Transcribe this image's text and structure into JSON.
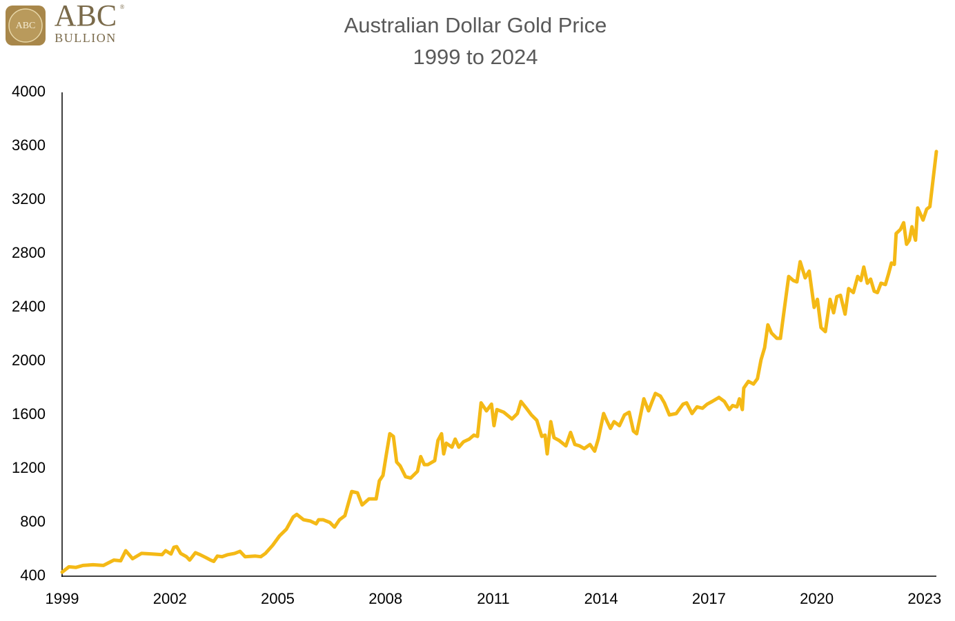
{
  "logo": {
    "mark": "ABC",
    "name": "ABC",
    "registered": "®",
    "tagline": "BULLION"
  },
  "chart_data": {
    "type": "line",
    "title": "Australian Dollar Gold Price",
    "subtitle": "1999 to 2024",
    "color": "#f4b916",
    "grid": false,
    "x": [
      1999.0,
      1999.19,
      1999.38,
      1999.58,
      1999.86,
      2000.15,
      2000.44,
      2000.63,
      2000.77,
      2000.96,
      2001.21,
      2001.5,
      2001.78,
      2001.88,
      2002.03,
      2002.11,
      2002.19,
      2002.3,
      2002.46,
      2002.55,
      2002.71,
      2002.84,
      2002.99,
      2003.13,
      2003.22,
      2003.32,
      2003.45,
      2003.61,
      2003.8,
      2003.95,
      2004.09,
      2004.38,
      2004.53,
      2004.66,
      2004.86,
      2005.05,
      2005.24,
      2005.43,
      2005.53,
      2005.72,
      2005.91,
      2006.07,
      2006.14,
      2006.26,
      2006.45,
      2006.58,
      2006.72,
      2006.87,
      2007.06,
      2007.22,
      2007.35,
      2007.54,
      2007.74,
      2007.83,
      2007.93,
      2008.02,
      2008.12,
      2008.22,
      2008.31,
      2008.41,
      2008.56,
      2008.7,
      2008.89,
      2008.98,
      2009.08,
      2009.18,
      2009.37,
      2009.46,
      2009.56,
      2009.62,
      2009.69,
      2009.85,
      2009.94,
      2010.04,
      2010.17,
      2010.33,
      2010.46,
      2010.56,
      2010.66,
      2010.81,
      2010.95,
      2011.02,
      2011.1,
      2011.29,
      2011.52,
      2011.67,
      2011.77,
      2011.92,
      2012.06,
      2012.21,
      2012.35,
      2012.44,
      2012.5,
      2012.6,
      2012.69,
      2012.83,
      2013.02,
      2013.15,
      2013.27,
      2013.4,
      2013.53,
      2013.69,
      2013.82,
      2013.92,
      2014.07,
      2014.17,
      2014.26,
      2014.36,
      2014.51,
      2014.65,
      2014.78,
      2014.9,
      2014.99,
      2015.19,
      2015.32,
      2015.42,
      2015.51,
      2015.65,
      2015.76,
      2015.9,
      2016.09,
      2016.28,
      2016.38,
      2016.53,
      2016.67,
      2016.82,
      2016.95,
      2017.09,
      2017.28,
      2017.43,
      2017.57,
      2017.66,
      2017.78,
      2017.85,
      2017.93,
      2017.97,
      2018.1,
      2018.24,
      2018.35,
      2018.45,
      2018.55,
      2018.64,
      2018.74,
      2018.89,
      2018.99,
      2019.1,
      2019.22,
      2019.35,
      2019.45,
      2019.54,
      2019.68,
      2019.79,
      2019.93,
      2020.02,
      2020.12,
      2020.24,
      2020.37,
      2020.47,
      2020.56,
      2020.66,
      2020.79,
      2020.89,
      2021.02,
      2021.14,
      2021.23,
      2021.31,
      2021.41,
      2021.5,
      2021.6,
      2021.69,
      2021.79,
      2021.91,
      2022.0,
      2022.08,
      2022.16,
      2022.21,
      2022.33,
      2022.42,
      2022.5,
      2022.58,
      2022.65,
      2022.75,
      2022.81,
      2022.96,
      2023.06,
      2023.15,
      2023.33
    ],
    "values": [
      430,
      470,
      465,
      480,
      485,
      480,
      520,
      515,
      590,
      530,
      570,
      565,
      560,
      590,
      565,
      615,
      620,
      570,
      545,
      520,
      575,
      560,
      540,
      520,
      510,
      550,
      545,
      560,
      570,
      585,
      545,
      550,
      545,
      570,
      630,
      700,
      750,
      840,
      860,
      820,
      810,
      790,
      820,
      820,
      800,
      765,
      820,
      850,
      1030,
      1020,
      930,
      975,
      975,
      1110,
      1150,
      1300,
      1460,
      1440,
      1250,
      1220,
      1140,
      1130,
      1180,
      1290,
      1230,
      1230,
      1260,
      1410,
      1460,
      1310,
      1390,
      1360,
      1420,
      1360,
      1400,
      1420,
      1450,
      1440,
      1690,
      1630,
      1680,
      1520,
      1640,
      1620,
      1570,
      1610,
      1700,
      1650,
      1600,
      1560,
      1440,
      1450,
      1310,
      1550,
      1430,
      1410,
      1370,
      1470,
      1380,
      1370,
      1350,
      1380,
      1330,
      1420,
      1610,
      1550,
      1500,
      1550,
      1520,
      1600,
      1620,
      1480,
      1460,
      1720,
      1630,
      1700,
      1760,
      1740,
      1690,
      1600,
      1610,
      1680,
      1690,
      1610,
      1660,
      1650,
      1680,
      1700,
      1730,
      1700,
      1640,
      1670,
      1660,
      1720,
      1640,
      1800,
      1850,
      1830,
      1870,
      2010,
      2100,
      2270,
      2210,
      2170,
      2170,
      2390,
      2630,
      2600,
      2590,
      2740,
      2620,
      2670,
      2400,
      2460,
      2250,
      2220,
      2460,
      2360,
      2480,
      2490,
      2350,
      2540,
      2510,
      2630,
      2600,
      2700,
      2580,
      2610,
      2520,
      2510,
      2580,
      2570,
      2650,
      2730,
      2720,
      2950,
      2980,
      3030,
      2870,
      2900,
      3000,
      2900,
      3140,
      3050,
      3130,
      3150,
      3560
    ],
    "xlim": [
      1999,
      2023.33
    ],
    "xticks": [
      1999,
      2002,
      2005,
      2008,
      2011,
      2014,
      2017,
      2020,
      2023
    ],
    "ylim": [
      400,
      4000
    ],
    "yticks": [
      400,
      800,
      1200,
      1600,
      2000,
      2400,
      2800,
      3200,
      3600,
      4000
    ]
  }
}
